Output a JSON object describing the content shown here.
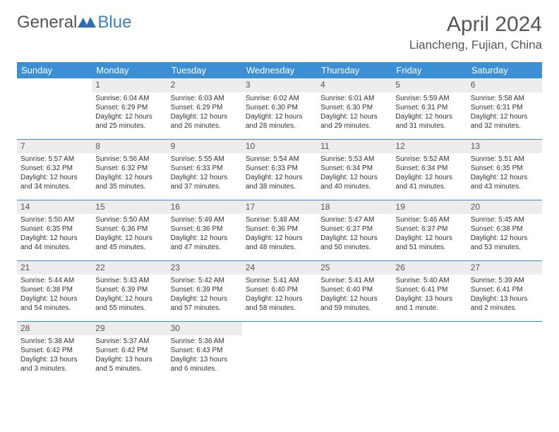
{
  "brand": {
    "general": "General",
    "blue": "Blue"
  },
  "title": "April 2024",
  "location": "Liancheng, Fujian, China",
  "colors": {
    "header_bg": "#3b8fd4",
    "header_fg": "#ffffff",
    "daynum_bg": "#ededed",
    "border": "#3b8fd4",
    "text": "#333333"
  },
  "weekdays": [
    "Sunday",
    "Monday",
    "Tuesday",
    "Wednesday",
    "Thursday",
    "Friday",
    "Saturday"
  ],
  "weeks": [
    [
      null,
      {
        "d": "1",
        "sr": "Sunrise: 6:04 AM",
        "ss": "Sunset: 6:29 PM",
        "dl1": "Daylight: 12 hours",
        "dl2": "and 25 minutes."
      },
      {
        "d": "2",
        "sr": "Sunrise: 6:03 AM",
        "ss": "Sunset: 6:29 PM",
        "dl1": "Daylight: 12 hours",
        "dl2": "and 26 minutes."
      },
      {
        "d": "3",
        "sr": "Sunrise: 6:02 AM",
        "ss": "Sunset: 6:30 PM",
        "dl1": "Daylight: 12 hours",
        "dl2": "and 28 minutes."
      },
      {
        "d": "4",
        "sr": "Sunrise: 6:01 AM",
        "ss": "Sunset: 6:30 PM",
        "dl1": "Daylight: 12 hours",
        "dl2": "and 29 minutes."
      },
      {
        "d": "5",
        "sr": "Sunrise: 5:59 AM",
        "ss": "Sunset: 6:31 PM",
        "dl1": "Daylight: 12 hours",
        "dl2": "and 31 minutes."
      },
      {
        "d": "6",
        "sr": "Sunrise: 5:58 AM",
        "ss": "Sunset: 6:31 PM",
        "dl1": "Daylight: 12 hours",
        "dl2": "and 32 minutes."
      }
    ],
    [
      {
        "d": "7",
        "sr": "Sunrise: 5:57 AM",
        "ss": "Sunset: 6:32 PM",
        "dl1": "Daylight: 12 hours",
        "dl2": "and 34 minutes."
      },
      {
        "d": "8",
        "sr": "Sunrise: 5:56 AM",
        "ss": "Sunset: 6:32 PM",
        "dl1": "Daylight: 12 hours",
        "dl2": "and 35 minutes."
      },
      {
        "d": "9",
        "sr": "Sunrise: 5:55 AM",
        "ss": "Sunset: 6:33 PM",
        "dl1": "Daylight: 12 hours",
        "dl2": "and 37 minutes."
      },
      {
        "d": "10",
        "sr": "Sunrise: 5:54 AM",
        "ss": "Sunset: 6:33 PM",
        "dl1": "Daylight: 12 hours",
        "dl2": "and 38 minutes."
      },
      {
        "d": "11",
        "sr": "Sunrise: 5:53 AM",
        "ss": "Sunset: 6:34 PM",
        "dl1": "Daylight: 12 hours",
        "dl2": "and 40 minutes."
      },
      {
        "d": "12",
        "sr": "Sunrise: 5:52 AM",
        "ss": "Sunset: 6:34 PM",
        "dl1": "Daylight: 12 hours",
        "dl2": "and 41 minutes."
      },
      {
        "d": "13",
        "sr": "Sunrise: 5:51 AM",
        "ss": "Sunset: 6:35 PM",
        "dl1": "Daylight: 12 hours",
        "dl2": "and 43 minutes."
      }
    ],
    [
      {
        "d": "14",
        "sr": "Sunrise: 5:50 AM",
        "ss": "Sunset: 6:35 PM",
        "dl1": "Daylight: 12 hours",
        "dl2": "and 44 minutes."
      },
      {
        "d": "15",
        "sr": "Sunrise: 5:50 AM",
        "ss": "Sunset: 6:36 PM",
        "dl1": "Daylight: 12 hours",
        "dl2": "and 45 minutes."
      },
      {
        "d": "16",
        "sr": "Sunrise: 5:49 AM",
        "ss": "Sunset: 6:36 PM",
        "dl1": "Daylight: 12 hours",
        "dl2": "and 47 minutes."
      },
      {
        "d": "17",
        "sr": "Sunrise: 5:48 AM",
        "ss": "Sunset: 6:36 PM",
        "dl1": "Daylight: 12 hours",
        "dl2": "and 48 minutes."
      },
      {
        "d": "18",
        "sr": "Sunrise: 5:47 AM",
        "ss": "Sunset: 6:37 PM",
        "dl1": "Daylight: 12 hours",
        "dl2": "and 50 minutes."
      },
      {
        "d": "19",
        "sr": "Sunrise: 5:46 AM",
        "ss": "Sunset: 6:37 PM",
        "dl1": "Daylight: 12 hours",
        "dl2": "and 51 minutes."
      },
      {
        "d": "20",
        "sr": "Sunrise: 5:45 AM",
        "ss": "Sunset: 6:38 PM",
        "dl1": "Daylight: 12 hours",
        "dl2": "and 53 minutes."
      }
    ],
    [
      {
        "d": "21",
        "sr": "Sunrise: 5:44 AM",
        "ss": "Sunset: 6:38 PM",
        "dl1": "Daylight: 12 hours",
        "dl2": "and 54 minutes."
      },
      {
        "d": "22",
        "sr": "Sunrise: 5:43 AM",
        "ss": "Sunset: 6:39 PM",
        "dl1": "Daylight: 12 hours",
        "dl2": "and 55 minutes."
      },
      {
        "d": "23",
        "sr": "Sunrise: 5:42 AM",
        "ss": "Sunset: 6:39 PM",
        "dl1": "Daylight: 12 hours",
        "dl2": "and 57 minutes."
      },
      {
        "d": "24",
        "sr": "Sunrise: 5:41 AM",
        "ss": "Sunset: 6:40 PM",
        "dl1": "Daylight: 12 hours",
        "dl2": "and 58 minutes."
      },
      {
        "d": "25",
        "sr": "Sunrise: 5:41 AM",
        "ss": "Sunset: 6:40 PM",
        "dl1": "Daylight: 12 hours",
        "dl2": "and 59 minutes."
      },
      {
        "d": "26",
        "sr": "Sunrise: 5:40 AM",
        "ss": "Sunset: 6:41 PM",
        "dl1": "Daylight: 13 hours",
        "dl2": "and 1 minute."
      },
      {
        "d": "27",
        "sr": "Sunrise: 5:39 AM",
        "ss": "Sunset: 6:41 PM",
        "dl1": "Daylight: 13 hours",
        "dl2": "and 2 minutes."
      }
    ],
    [
      {
        "d": "28",
        "sr": "Sunrise: 5:38 AM",
        "ss": "Sunset: 6:42 PM",
        "dl1": "Daylight: 13 hours",
        "dl2": "and 3 minutes."
      },
      {
        "d": "29",
        "sr": "Sunrise: 5:37 AM",
        "ss": "Sunset: 6:42 PM",
        "dl1": "Daylight: 13 hours",
        "dl2": "and 5 minutes."
      },
      {
        "d": "30",
        "sr": "Sunrise: 5:36 AM",
        "ss": "Sunset: 6:43 PM",
        "dl1": "Daylight: 13 hours",
        "dl2": "and 6 minutes."
      },
      null,
      null,
      null,
      null
    ]
  ]
}
